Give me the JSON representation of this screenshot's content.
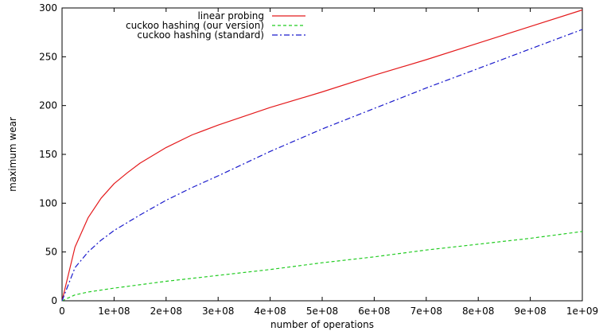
{
  "chart_data": {
    "type": "line",
    "title": "",
    "xlabel": "number of operations",
    "ylabel": "maximum wear",
    "xlim": [
      0,
      1000000000
    ],
    "ylim": [
      0,
      300
    ],
    "grid": false,
    "legend_position": "top-left",
    "x_ticks": [
      0,
      100000000,
      200000000,
      300000000,
      400000000,
      500000000,
      600000000,
      700000000,
      800000000,
      900000000,
      1000000000
    ],
    "x_tick_labels": [
      "0",
      "1e+08",
      "2e+08",
      "3e+08",
      "4e+08",
      "5e+08",
      "6e+08",
      "7e+08",
      "8e+08",
      "9e+08",
      "1e+09"
    ],
    "y_ticks": [
      0,
      50,
      100,
      150,
      200,
      250,
      300
    ],
    "y_tick_labels": [
      "0",
      "50",
      "100",
      "150",
      "200",
      "250",
      "300"
    ],
    "series": [
      {
        "name": "linear probing",
        "color": "#e41a1c",
        "style": "solid",
        "x": [
          0,
          25000000,
          50000000,
          75000000,
          100000000,
          125000000,
          150000000,
          200000000,
          250000000,
          300000000,
          400000000,
          500000000,
          600000000,
          700000000,
          800000000,
          900000000,
          1000000000
        ],
        "y": [
          0,
          55,
          85,
          105,
          120,
          131,
          141,
          157,
          170,
          180,
          198,
          214,
          231,
          247,
          264,
          281,
          298
        ]
      },
      {
        "name": "cuckoo hashing (our version)",
        "color": "#22cc22",
        "style": "dashed",
        "x": [
          0,
          25000000,
          50000000,
          100000000,
          200000000,
          300000000,
          400000000,
          500000000,
          600000000,
          700000000,
          800000000,
          900000000,
          1000000000
        ],
        "y": [
          0,
          6,
          9,
          13,
          20,
          26,
          32,
          39,
          45,
          52,
          58,
          64,
          71
        ]
      },
      {
        "name": "cuckoo hashing (standard)",
        "color": "#1a1acc",
        "style": "dashdot",
        "x": [
          0,
          25000000,
          50000000,
          75000000,
          100000000,
          150000000,
          200000000,
          250000000,
          300000000,
          400000000,
          500000000,
          600000000,
          700000000,
          800000000,
          900000000,
          1000000000
        ],
        "y": [
          0,
          34,
          50,
          62,
          72,
          88,
          103,
          116,
          128,
          153,
          176,
          197,
          218,
          238,
          258,
          278
        ]
      }
    ]
  }
}
